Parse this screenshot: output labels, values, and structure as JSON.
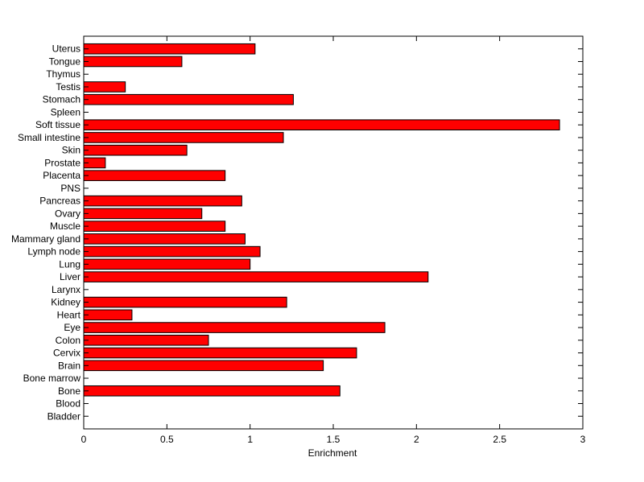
{
  "chart_data": {
    "type": "bar",
    "orientation": "horizontal",
    "categories": [
      "Bladder",
      "Blood",
      "Bone",
      "Bone marrow",
      "Brain",
      "Cervix",
      "Colon",
      "Eye",
      "Heart",
      "Kidney",
      "Larynx",
      "Liver",
      "Lung",
      "Lymph node",
      "Mammary gland",
      "Muscle",
      "Ovary",
      "Pancreas",
      "PNS",
      "Placenta",
      "Prostate",
      "Skin",
      "Small intestine",
      "Soft tissue",
      "Spleen",
      "Stomach",
      "Testis",
      "Thymus",
      "Tongue",
      "Uterus"
    ],
    "values": [
      0,
      0,
      1.54,
      0,
      1.44,
      1.64,
      0.75,
      1.81,
      0.29,
      1.22,
      0,
      2.07,
      1.0,
      1.06,
      0.97,
      0.85,
      0.71,
      0.95,
      0,
      0.85,
      0.13,
      0.62,
      1.2,
      2.86,
      0,
      1.26,
      0.25,
      0,
      0.59,
      1.03
    ],
    "xlabel": "Enrichment",
    "ylabel": "",
    "title": "",
    "xlim": [
      0,
      3
    ],
    "xticks": [
      "0",
      "0.5",
      "1",
      "1.5",
      "2",
      "2.5",
      "3"
    ],
    "grid": false,
    "bar_color": "#ff0000",
    "bar_edge_color": "#000000"
  }
}
